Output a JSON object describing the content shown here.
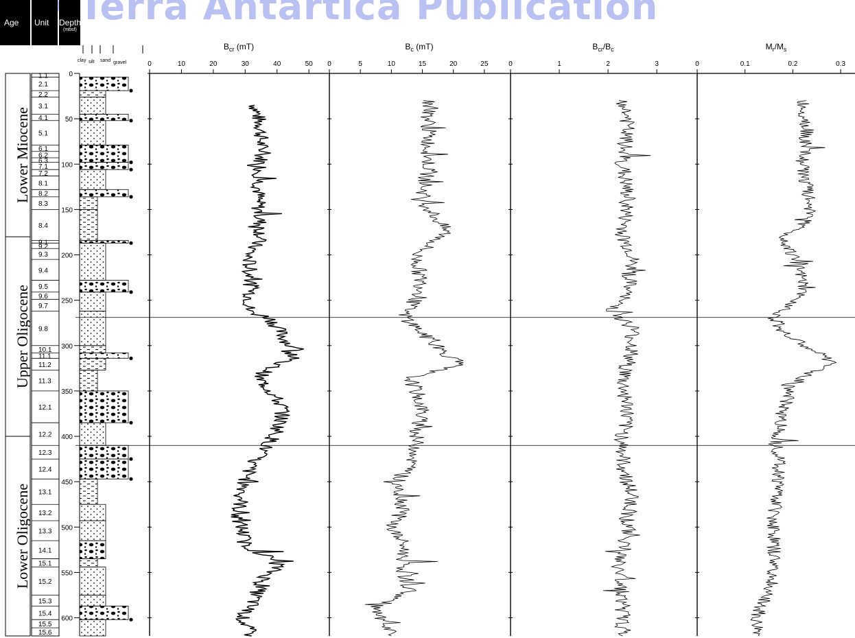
{
  "watermark": "© Terra Antartica Publication",
  "header": {
    "age": "Age",
    "unit": "Unit",
    "depth": "Depth",
    "depth_unit": "(mbsf)"
  },
  "grain_labels": [
    "clay",
    "silt",
    "sand",
    "gravel"
  ],
  "ages": [
    "Lower Miocene",
    "Upper Oligocene",
    "Lower Oligocene"
  ],
  "age_boundaries_mbsf": [
    0,
    180,
    400,
    620
  ],
  "units": [
    {
      "label": "1.1",
      "top": 0,
      "bottom": 4
    },
    {
      "label": "2.1",
      "top": 4,
      "bottom": 19
    },
    {
      "label": "2.2",
      "top": 19,
      "bottom": 26
    },
    {
      "label": "3.1",
      "top": 26,
      "bottom": 45
    },
    {
      "label": "4.1",
      "top": 45,
      "bottom": 52
    },
    {
      "label": "5.1",
      "top": 52,
      "bottom": 79
    },
    {
      "label": "6.1",
      "top": 79,
      "bottom": 86
    },
    {
      "label": "6.2",
      "top": 86,
      "bottom": 93
    },
    {
      "label": "6.3",
      "top": 93,
      "bottom": 98
    },
    {
      "label": "7.1",
      "top": 98,
      "bottom": 106
    },
    {
      "label": "7.2",
      "top": 106,
      "bottom": 113
    },
    {
      "label": "8.1",
      "top": 113,
      "bottom": 128
    },
    {
      "label": "8.2",
      "top": 128,
      "bottom": 136
    },
    {
      "label": "8.3",
      "top": 136,
      "bottom": 150
    },
    {
      "label": "8.4",
      "top": 150,
      "bottom": 184
    },
    {
      "label": "9.1",
      "top": 184,
      "bottom": 187
    },
    {
      "label": "9.2",
      "top": 187,
      "bottom": 193
    },
    {
      "label": "9.3",
      "top": 193,
      "bottom": 205
    },
    {
      "label": "9.4",
      "top": 205,
      "bottom": 228
    },
    {
      "label": "9.5",
      "top": 228,
      "bottom": 241
    },
    {
      "label": "9.6",
      "top": 241,
      "bottom": 249
    },
    {
      "label": "9.7",
      "top": 249,
      "bottom": 262
    },
    {
      "label": "9.8",
      "top": 262,
      "bottom": 300
    },
    {
      "label": "10.1",
      "top": 300,
      "bottom": 308
    },
    {
      "label": "11.1",
      "top": 308,
      "bottom": 314
    },
    {
      "label": "11.2",
      "top": 314,
      "bottom": 327
    },
    {
      "label": "11.3",
      "top": 327,
      "bottom": 350
    },
    {
      "label": "12.1",
      "top": 350,
      "bottom": 385
    },
    {
      "label": "12.2",
      "top": 385,
      "bottom": 410
    },
    {
      "label": "12.3",
      "top": 410,
      "bottom": 425
    },
    {
      "label": "12.4",
      "top": 425,
      "bottom": 447
    },
    {
      "label": "13.1",
      "top": 447,
      "bottom": 475
    },
    {
      "label": "13.2",
      "top": 475,
      "bottom": 493
    },
    {
      "label": "13.3",
      "top": 493,
      "bottom": 515
    },
    {
      "label": "14.1",
      "top": 515,
      "bottom": 535
    },
    {
      "label": "15.1",
      "top": 535,
      "bottom": 544
    },
    {
      "label": "15.2",
      "top": 544,
      "bottom": 575
    },
    {
      "label": "15.3",
      "top": 575,
      "bottom": 587
    },
    {
      "label": "15.4",
      "top": 587,
      "bottom": 602
    },
    {
      "label": "15.5",
      "top": 602,
      "bottom": 611
    },
    {
      "label": "15.6",
      "top": 611,
      "bottom": 620
    }
  ],
  "lithology": [
    {
      "top": 4,
      "bottom": 19,
      "w": "gravel",
      "pat": "gravel"
    },
    {
      "top": 19,
      "bottom": 26,
      "w": "sand",
      "pat": "dash"
    },
    {
      "top": 26,
      "bottom": 45,
      "w": "sand",
      "pat": "dots"
    },
    {
      "top": 45,
      "bottom": 52,
      "w": "gravel",
      "pat": "gravel"
    },
    {
      "top": 52,
      "bottom": 79,
      "w": "sand",
      "pat": "dots"
    },
    {
      "top": 79,
      "bottom": 98,
      "w": "gravel",
      "pat": "gravel"
    },
    {
      "top": 98,
      "bottom": 106,
      "w": "gravel",
      "pat": "gravel"
    },
    {
      "top": 106,
      "bottom": 128,
      "w": "sand",
      "pat": "dots"
    },
    {
      "top": 128,
      "bottom": 136,
      "w": "gravel",
      "pat": "gravel"
    },
    {
      "top": 136,
      "bottom": 150,
      "w": "silt",
      "pat": "dash"
    },
    {
      "top": 150,
      "bottom": 184,
      "w": "silt",
      "pat": "dash"
    },
    {
      "top": 184,
      "bottom": 187,
      "w": "gravel",
      "pat": "gravel"
    },
    {
      "top": 187,
      "bottom": 228,
      "w": "sand",
      "pat": "dots"
    },
    {
      "top": 228,
      "bottom": 241,
      "w": "gravel",
      "pat": "gravel"
    },
    {
      "top": 241,
      "bottom": 262,
      "w": "sand",
      "pat": "dots"
    },
    {
      "top": 262,
      "bottom": 300,
      "w": "sand",
      "pat": "dots"
    },
    {
      "top": 300,
      "bottom": 308,
      "w": "sand",
      "pat": "dash"
    },
    {
      "top": 308,
      "bottom": 314,
      "w": "gravel",
      "pat": "gravel"
    },
    {
      "top": 314,
      "bottom": 327,
      "w": "sand",
      "pat": "dash"
    },
    {
      "top": 327,
      "bottom": 350,
      "w": "silt",
      "pat": "dash"
    },
    {
      "top": 350,
      "bottom": 385,
      "w": "gravel",
      "pat": "gravel"
    },
    {
      "top": 385,
      "bottom": 410,
      "w": "sand",
      "pat": "dots"
    },
    {
      "top": 410,
      "bottom": 425,
      "w": "gravel",
      "pat": "gravel"
    },
    {
      "top": 425,
      "bottom": 447,
      "w": "gravel",
      "pat": "gravel"
    },
    {
      "top": 447,
      "bottom": 475,
      "w": "silt",
      "pat": "dash"
    },
    {
      "top": 475,
      "bottom": 493,
      "w": "sand",
      "pat": "dots"
    },
    {
      "top": 493,
      "bottom": 515,
      "w": "sand",
      "pat": "dots"
    },
    {
      "top": 515,
      "bottom": 535,
      "w": "sand",
      "pat": "gravel"
    },
    {
      "top": 535,
      "bottom": 544,
      "w": "silt",
      "pat": "dash"
    },
    {
      "top": 544,
      "bottom": 575,
      "w": "sand",
      "pat": "dots"
    },
    {
      "top": 575,
      "bottom": 587,
      "w": "sand",
      "pat": "dots"
    },
    {
      "top": 587,
      "bottom": 602,
      "w": "gravel",
      "pat": "gravel"
    },
    {
      "top": 602,
      "bottom": 620,
      "w": "sand",
      "pat": "dots"
    }
  ],
  "chart_data": [
    {
      "type": "line",
      "title": "Bcr (mT)",
      "title_base": "B",
      "title_sub": "cr",
      "title_rest": " (mT)",
      "x_ticks": [
        0,
        10,
        20,
        30,
        40,
        50
      ],
      "xlim": [
        0,
        56
      ],
      "ylim": [
        0,
        620
      ],
      "y_ticks": [
        0,
        50,
        100,
        150,
        200,
        250,
        300,
        350,
        400,
        450,
        500,
        550,
        600
      ],
      "depth": [
        35,
        60,
        100,
        140,
        180,
        200,
        240,
        262,
        270,
        290,
        300,
        310,
        320,
        335,
        350,
        370,
        385,
        395,
        410,
        430,
        450,
        470,
        490,
        500,
        520,
        540,
        560,
        580,
        600,
        620
      ],
      "values": [
        33,
        35,
        35,
        34,
        35,
        31,
        32,
        31,
        38,
        42,
        44,
        46,
        40,
        34,
        38,
        42,
        41,
        40,
        37,
        32,
        30,
        29,
        27,
        29,
        30,
        41,
        35,
        33,
        29,
        32
      ],
      "ref_lines_mbsf": [
        269,
        410
      ]
    },
    {
      "type": "line",
      "title": "Bc (mT)",
      "title_base": "B",
      "title_sub": "c",
      "title_rest": " (mT)",
      "x_ticks": [
        0,
        5,
        10,
        15,
        20,
        25
      ],
      "xlim": [
        0,
        29
      ],
      "depth": [
        30,
        60,
        100,
        140,
        175,
        200,
        240,
        265,
        280,
        300,
        320,
        335,
        350,
        370,
        400,
        420,
        450,
        480,
        500,
        520,
        550,
        570,
        590,
        610,
        620
      ],
      "values": [
        16,
        16,
        16,
        15,
        19,
        14,
        15,
        12,
        14,
        17,
        21,
        13,
        14,
        15,
        14,
        14,
        11,
        12,
        10,
        12,
        12,
        13,
        7,
        9,
        10
      ]
    },
    {
      "type": "line",
      "title": "Bcr/Bc",
      "title_base": "B",
      "title_sub": "cr",
      "title_rest": "/B",
      "title_sub2": "c",
      "x_ticks": [
        0,
        1,
        2,
        3
      ],
      "xlim": [
        0,
        3.8
      ],
      "depth": [
        30,
        50,
        100,
        140,
        180,
        200,
        240,
        262,
        280,
        300,
        320,
        340,
        370,
        400,
        430,
        470,
        490,
        510,
        540,
        570,
        590,
        610,
        620
      ],
      "values": [
        2.3,
        2.4,
        2.3,
        2.4,
        2.3,
        2.5,
        2.4,
        2.1,
        2.5,
        2.5,
        2.4,
        2.3,
        2.4,
        2.3,
        2.3,
        2.5,
        2.4,
        2.4,
        2.2,
        2.3,
        2.3,
        2.3,
        2.3
      ]
    },
    {
      "type": "line",
      "title": "Mr/Ms",
      "title_base": "M",
      "title_sub": "r",
      "title_rest": "/M",
      "title_sub2": "s",
      "x_ticks": [
        0,
        0.1,
        0.2,
        0.3
      ],
      "xlim": [
        0,
        0.33
      ],
      "depth": [
        30,
        60,
        100,
        130,
        160,
        180,
        200,
        230,
        250,
        270,
        290,
        310,
        320,
        340,
        370,
        400,
        430,
        460,
        490,
        520,
        550,
        580,
        600,
        620
      ],
      "values": [
        0.22,
        0.23,
        0.22,
        0.23,
        0.24,
        0.18,
        0.2,
        0.22,
        0.21,
        0.16,
        0.19,
        0.26,
        0.28,
        0.2,
        0.18,
        0.17,
        0.17,
        0.17,
        0.16,
        0.16,
        0.16,
        0.14,
        0.12,
        0.13
      ]
    }
  ]
}
